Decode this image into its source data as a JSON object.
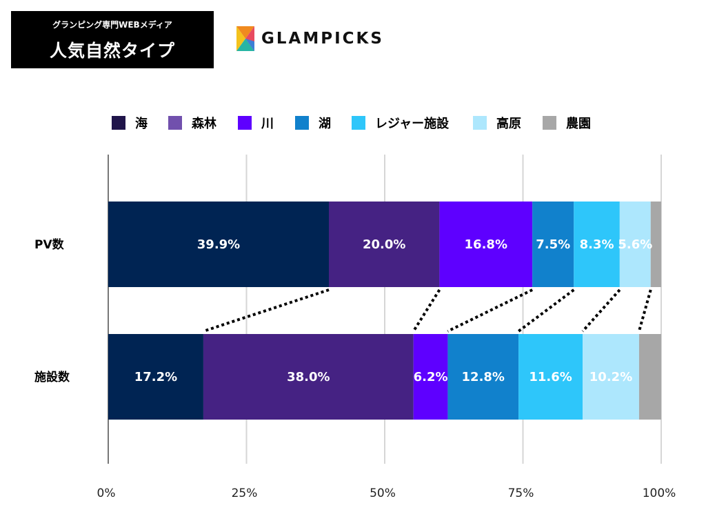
{
  "header": {
    "subtitle": "グランピング専門WEBメディア",
    "title": "人気自然タイプ",
    "logo_text": "GLAMPICKS",
    "logo_icon": "glampicks-logo-icon"
  },
  "chart_data": {
    "type": "bar",
    "orientation": "horizontal",
    "stacked": true,
    "normalized": true,
    "categories": [
      "PV数",
      "施設数"
    ],
    "series": [
      {
        "name": "海",
        "color": "#002453",
        "values": [
          39.9,
          17.2
        ],
        "labels": [
          "39.9%",
          "17.2%"
        ]
      },
      {
        "name": "森林",
        "color": "#452283",
        "values": [
          20.0,
          38.0
        ],
        "labels": [
          "20.0%",
          "38.0%"
        ]
      },
      {
        "name": "川",
        "color": "#5e00ff",
        "values": [
          16.8,
          6.2
        ],
        "labels": [
          "16.8%",
          "6.2%"
        ]
      },
      {
        "name": "湖",
        "color": "#1181cc",
        "values": [
          7.5,
          12.8
        ],
        "labels": [
          "7.5%",
          "12.8%"
        ]
      },
      {
        "name": "レジャー施設",
        "color": "#2ec6fa",
        "values": [
          8.3,
          11.6
        ],
        "labels": [
          "8.3%",
          "11.6%"
        ]
      },
      {
        "name": "高原",
        "color": "#ade7fd",
        "values": [
          5.6,
          10.2
        ],
        "labels": [
          "5.6%",
          "10.2%"
        ]
      },
      {
        "name": "農園",
        "color": "#a7a7a7",
        "values": [
          1.9,
          4.0
        ],
        "labels": [
          "",
          ""
        ]
      }
    ],
    "legend_colors": [
      "#20154a",
      "#7150ad",
      "#5e00ff",
      "#1181cc",
      "#2ec6fa",
      "#ade7fd",
      "#a7a7a7"
    ],
    "xlim": [
      0,
      100
    ],
    "xticks": [
      0,
      25,
      50,
      75,
      100
    ],
    "xtick_labels": [
      "0%",
      "25%",
      "50%",
      "75%",
      "100%"
    ],
    "grid": true,
    "legend": "top",
    "connector_lines": "dotted"
  }
}
